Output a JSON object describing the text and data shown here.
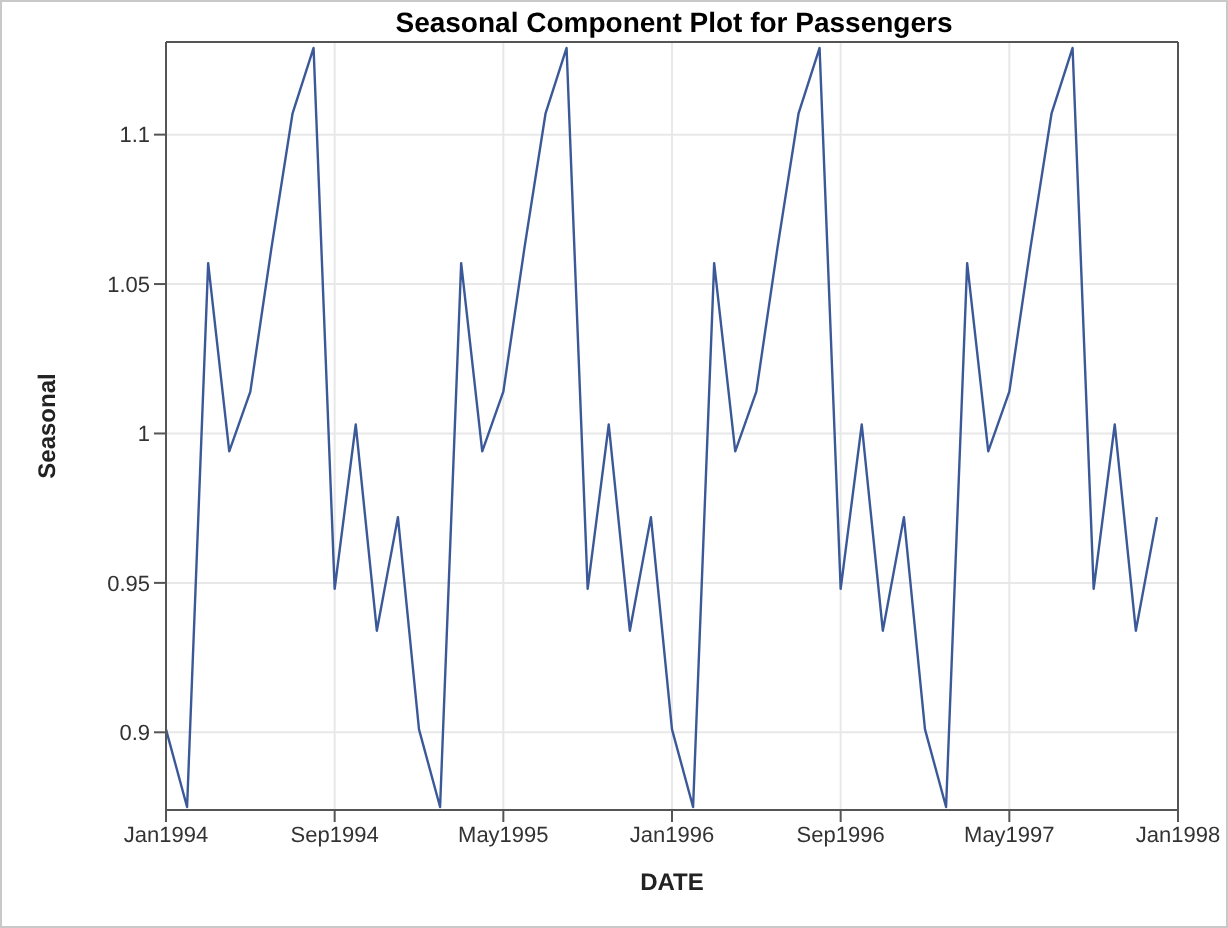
{
  "chart_data": {
    "type": "line",
    "title": "Seasonal Component Plot for Passengers",
    "xlabel": "DATE",
    "ylabel": "Seasonal",
    "x": [
      "1994-01",
      "1994-02",
      "1994-03",
      "1994-04",
      "1994-05",
      "1994-06",
      "1994-07",
      "1994-08",
      "1994-09",
      "1994-10",
      "1994-11",
      "1994-12",
      "1995-01",
      "1995-02",
      "1995-03",
      "1995-04",
      "1995-05",
      "1995-06",
      "1995-07",
      "1995-08",
      "1995-09",
      "1995-10",
      "1995-11",
      "1995-12",
      "1996-01",
      "1996-02",
      "1996-03",
      "1996-04",
      "1996-05",
      "1996-06",
      "1996-07",
      "1996-08",
      "1996-09",
      "1996-10",
      "1996-11",
      "1996-12",
      "1997-01",
      "1997-02",
      "1997-03",
      "1997-04",
      "1997-05",
      "1997-06",
      "1997-07",
      "1997-08",
      "1997-09",
      "1997-10",
      "1997-11",
      "1997-12"
    ],
    "values": [
      0.901,
      0.875,
      1.057,
      0.994,
      1.014,
      1.062,
      1.107,
      1.129,
      0.948,
      1.003,
      0.934,
      0.972,
      0.901,
      0.875,
      1.057,
      0.994,
      1.014,
      1.062,
      1.107,
      1.129,
      0.948,
      1.003,
      0.934,
      0.972,
      0.901,
      0.875,
      1.057,
      0.994,
      1.014,
      1.062,
      1.107,
      1.129,
      0.948,
      1.003,
      0.934,
      0.972,
      0.901,
      0.875,
      1.057,
      0.994,
      1.014,
      1.062,
      1.107,
      1.129,
      0.948,
      1.003,
      0.934,
      0.972
    ],
    "color": "#3b5998",
    "xlim": [
      "1994-01",
      "1998-01"
    ],
    "xticks": [
      {
        "value": "1994-01",
        "label": "Jan1994"
      },
      {
        "value": "1994-09",
        "label": "Sep1994"
      },
      {
        "value": "1995-05",
        "label": "May1995"
      },
      {
        "value": "1996-01",
        "label": "Jan1996"
      },
      {
        "value": "1996-09",
        "label": "Sep1996"
      },
      {
        "value": "1997-05",
        "label": "May1997"
      },
      {
        "value": "1998-01",
        "label": "Jan1998"
      }
    ],
    "ylim": [
      0.874,
      1.131
    ],
    "yticks": [
      0.9,
      0.95,
      1,
      1.05,
      1.1
    ],
    "grid": true,
    "marker": "none",
    "line_style": "solid"
  }
}
